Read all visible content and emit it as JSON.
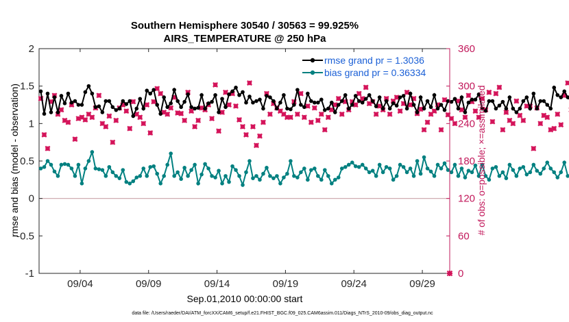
{
  "chart_data": {
    "type": "line",
    "title_line1": "Southern Hemisphere 30540 / 30563 = 99.925%",
    "title_line2": "AIRS_TEMPERATURE @ 250 hPa",
    "xlabel": "Sep.01,2010 00:00:00 start",
    "ylabel_left": "rmse and bias (model - observation)",
    "ylabel_right": "# of obs: o=possible; ×=assimilated",
    "footer": "data file: /Users/raeder/DAI/ATM_forcXX/CAM6_setup/f.e21.FHIST_BGC.f09_025.CAM6assim.011/Diags_NTrS_2010-09/obs_diag_output.nc",
    "xlim_days": [
      1.0,
      31.0
    ],
    "x_ticks": [
      {
        "day": 4,
        "label": "09/04"
      },
      {
        "day": 9,
        "label": "09/09"
      },
      {
        "day": 14,
        "label": "09/14"
      },
      {
        "day": 19,
        "label": "09/19"
      },
      {
        "day": 24,
        "label": "09/24"
      },
      {
        "day": 29,
        "label": "09/29"
      }
    ],
    "ylim_left": [
      -1,
      2
    ],
    "y_ticks_left": [
      "-1",
      "-0.5",
      "0",
      "0.5",
      "1",
      "1.5",
      "2"
    ],
    "ylim_right": [
      0,
      360
    ],
    "y_ticks_right": [
      "0",
      "60",
      "120",
      "180",
      "240",
      "300",
      "360"
    ],
    "grid": false,
    "zero_line": true,
    "legend_position": "top-right",
    "colors": {
      "rmse": "#000000",
      "bias": "#008080",
      "obs": "#d4145a",
      "right_axis": "#c2185b",
      "zero_line": "#c9a3a8",
      "legend_text": "#1a5fd6"
    },
    "series": [
      {
        "name": "rmse grand pr = 1.3036",
        "axis": "left",
        "values": [
          1.43,
          1.13,
          1.4,
          1.15,
          1.35,
          1.15,
          1.37,
          1.27,
          1.4,
          1.28,
          1.3,
          1.25,
          1.25,
          1.42,
          1.5,
          1.4,
          1.22,
          1.23,
          1.15,
          1.3,
          1.3,
          1.22,
          1.18,
          1.2,
          1.3,
          1.26,
          1.3,
          1.1,
          1.2,
          1.33,
          1.2,
          1.44,
          1.4,
          1.45,
          1.25,
          1.13,
          1.35,
          1.22,
          1.27,
          1.45,
          1.3,
          1.22,
          1.29,
          1.39,
          1.22,
          1.2,
          1.21,
          1.38,
          1.2,
          1.27,
          1.29,
          1.38,
          1.15,
          1.33,
          1.22,
          1.39,
          1.43,
          1.48,
          1.38,
          1.42,
          1.28,
          1.36,
          1.28,
          1.3,
          1.32,
          1.2,
          1.37,
          1.35,
          1.3,
          1.2,
          1.28,
          1.38,
          1.2,
          1.19,
          1.25,
          1.45,
          1.25,
          1.22,
          1.4,
          1.3,
          1.28,
          1.28,
          1.32,
          1.18,
          1.2,
          1.28,
          1.15,
          1.25,
          1.3,
          1.38,
          1.2,
          1.25,
          1.37,
          1.3,
          1.28,
          1.33,
          1.38,
          1.3,
          1.23,
          1.35,
          1.2,
          1.3,
          1.2,
          1.27,
          1.24,
          1.35,
          1.37,
          1.2,
          1.4,
          1.25,
          1.15,
          1.35,
          1.2,
          1.3,
          1.22,
          1.38,
          1.2,
          1.25,
          1.18,
          1.3,
          1.29,
          1.33,
          1.2,
          1.35,
          1.15,
          1.28,
          1.32,
          1.32,
          1.39,
          1.2,
          1.17,
          1.3,
          1.3,
          1.2,
          1.24,
          1.29,
          1.2,
          1.35,
          1.2,
          1.15,
          1.2,
          1.3,
          1.35,
          1.2,
          1.4,
          1.2,
          1.3,
          1.3,
          1.25,
          1.2,
          1.48,
          1.38,
          1.35,
          1.43,
          1.35,
          1.3,
          1.3
        ]
      },
      {
        "name": "bias grand pr = 0.36334",
        "axis": "left",
        "values": [
          0.4,
          0.42,
          0.5,
          0.45,
          0.36,
          0.3,
          0.45,
          0.46,
          0.45,
          0.4,
          0.3,
          0.45,
          0.2,
          0.4,
          0.5,
          0.62,
          0.4,
          0.39,
          0.38,
          0.3,
          0.42,
          0.35,
          0.3,
          0.27,
          0.38,
          0.22,
          0.2,
          0.23,
          0.28,
          0.3,
          0.4,
          0.3,
          0.42,
          0.43,
          0.33,
          0.2,
          0.3,
          0.45,
          0.6,
          0.3,
          0.35,
          0.26,
          0.41,
          0.3,
          0.38,
          0.45,
          0.2,
          0.32,
          0.46,
          0.4,
          0.3,
          0.28,
          0.37,
          0.2,
          0.3,
          0.22,
          0.43,
          0.38,
          0.3,
          0.18,
          0.35,
          0.5,
          0.27,
          0.3,
          0.25,
          0.33,
          0.41,
          0.3,
          0.27,
          0.3,
          0.2,
          0.28,
          0.33,
          0.5,
          0.3,
          0.28,
          0.35,
          0.4,
          0.25,
          0.38,
          0.4,
          0.3,
          0.25,
          0.38,
          0.3,
          0.2,
          0.25,
          0.28,
          0.4,
          0.42,
          0.45,
          0.48,
          0.43,
          0.42,
          0.45,
          0.4,
          0.35,
          0.37,
          0.3,
          0.45,
          0.35,
          0.42,
          0.4,
          0.25,
          0.3,
          0.45,
          0.42,
          0.35,
          0.4,
          0.3,
          0.5,
          0.33,
          0.55,
          0.4,
          0.36,
          0.3,
          0.45,
          0.4,
          0.47,
          0.38,
          0.35,
          0.45,
          0.3,
          0.4,
          0.28,
          0.37,
          0.35,
          0.44,
          0.3,
          0.45,
          0.3,
          0.25,
          0.4,
          0.42,
          0.3,
          0.35,
          0.27,
          0.45,
          0.38,
          0.3,
          0.4,
          0.42,
          0.32,
          0.35,
          0.45,
          0.37,
          0.33,
          0.4,
          0.48,
          0.4,
          0.35,
          0.28,
          0.35,
          0.48,
          0.3
        ]
      },
      {
        "name": "assimilated",
        "axis": "right",
        "marker": "x",
        "values": [
          280,
          222,
          200,
          275,
          285,
          255,
          262,
          245,
          242,
          270,
          215,
          248,
          250,
          246,
          255,
          250,
          265,
          285,
          240,
          235,
          252,
          210,
          245,
          265,
          270,
          260,
          232,
          275,
          255,
          250,
          240,
          270,
          225,
          275,
          296,
          288,
          258,
          255,
          265,
          282,
          257,
          256,
          245,
          290,
          260,
          235,
          245,
          265,
          262,
          270,
          248,
          302,
          228,
          258,
          290,
          270,
          288,
          268,
          246,
          235,
          222,
          305,
          235,
          205,
          220,
          242,
          288,
          255,
          272,
          265,
          260,
          255,
          250,
          250,
          275,
          255,
          288,
          250,
          268,
          242,
          265,
          245,
          255,
          230,
          250,
          262,
          270,
          280,
          255,
          275,
          262,
          275,
          270,
          288,
          280,
          298,
          272,
          275,
          255,
          268,
          262,
          280,
          255,
          276,
          282,
          260,
          272,
          290,
          270,
          280,
          256,
          263,
          230,
          242,
          255,
          260,
          270,
          230,
          278,
          254,
          248,
          240,
          276,
          262,
          250,
          285,
          275,
          260,
          250,
          280,
          262,
          290,
          243,
          288,
          298,
          230,
          258,
          245,
          240,
          276,
          253,
          245,
          268,
          268,
          200,
          265,
          240,
          253,
          250,
          230,
          232,
          255,
          238,
          285,
          305,
          262,
          272,
          268,
          265,
          275,
          252,
          270
        ]
      },
      {
        "name": "possible",
        "axis": "right",
        "marker": "o",
        "values": [
          160,
          160,
          180,
          170,
          165,
          175,
          165,
          160,
          170,
          170,
          175,
          165
        ]
      }
    ]
  }
}
